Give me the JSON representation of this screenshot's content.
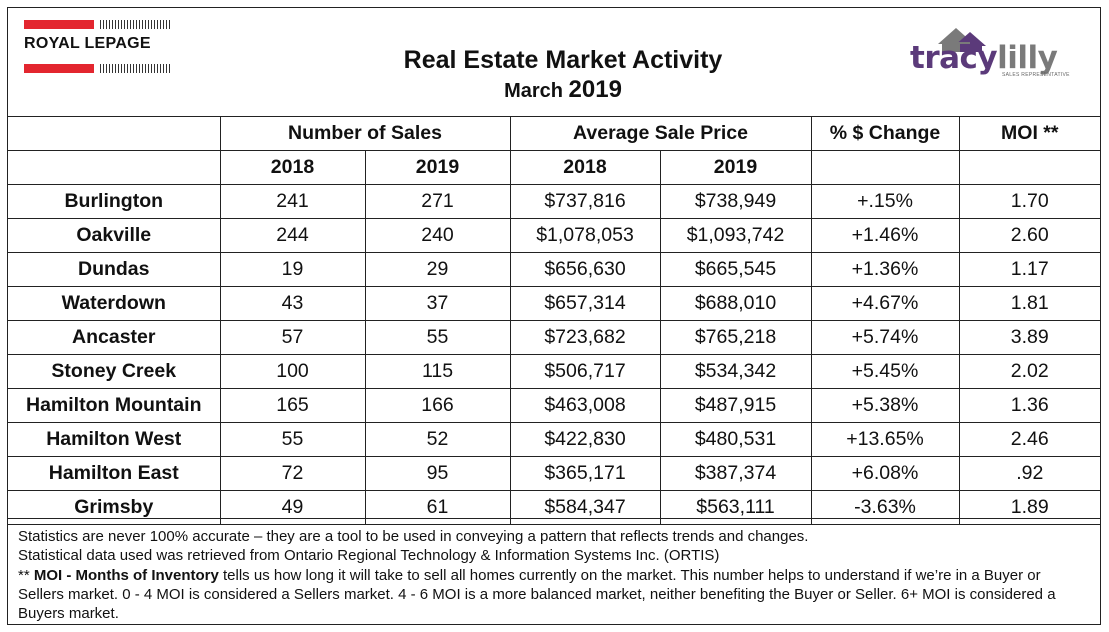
{
  "header": {
    "title": "Real Estate Market Activity",
    "subtitle_month": "March",
    "subtitle_year": "2019",
    "logo_left_text": "ROYAL LEPAGE",
    "logo_right_text_a": "tracy",
    "logo_right_text_b": "lilly",
    "logo_right_tagline": "SALES REPRESENTATIVE"
  },
  "table": {
    "group_headers": {
      "sales": "Number of Sales",
      "price": "Average Sale Price",
      "change": "% $ Change",
      "moi": "MOI **"
    },
    "year_headers": [
      "2018",
      "2019",
      "2018",
      "2019"
    ],
    "rows": [
      {
        "city": "Burlington",
        "sales_2018": "241",
        "sales_2019": "271",
        "price_2018": "$737,816",
        "price_2019": "$738,949",
        "change": "+.15%",
        "moi": "1.70"
      },
      {
        "city": "Oakville",
        "sales_2018": "244",
        "sales_2019": "240",
        "price_2018": "$1,078,053",
        "price_2019": "$1,093,742",
        "change": "+1.46%",
        "moi": "2.60"
      },
      {
        "city": "Dundas",
        "sales_2018": "19",
        "sales_2019": "29",
        "price_2018": "$656,630",
        "price_2019": "$665,545",
        "change": "+1.36%",
        "moi": "1.17"
      },
      {
        "city": "Waterdown",
        "sales_2018": "43",
        "sales_2019": "37",
        "price_2018": "$657,314",
        "price_2019": "$688,010",
        "change": "+4.67%",
        "moi": "1.81"
      },
      {
        "city": "Ancaster",
        "sales_2018": "57",
        "sales_2019": "55",
        "price_2018": "$723,682",
        "price_2019": "$765,218",
        "change": "+5.74%",
        "moi": "3.89"
      },
      {
        "city": "Stoney Creek",
        "sales_2018": "100",
        "sales_2019": "115",
        "price_2018": "$506,717",
        "price_2019": "$534,342",
        "change": "+5.45%",
        "moi": "2.02"
      },
      {
        "city": "Hamilton Mountain",
        "sales_2018": "165",
        "sales_2019": "166",
        "price_2018": "$463,008",
        "price_2019": "$487,915",
        "change": "+5.38%",
        "moi": "1.36"
      },
      {
        "city": "Hamilton West",
        "sales_2018": "55",
        "sales_2019": "52",
        "price_2018": "$422,830",
        "price_2019": "$480,531",
        "change": "+13.65%",
        "moi": "2.46"
      },
      {
        "city": "Hamilton East",
        "sales_2018": "72",
        "sales_2019": "95",
        "price_2018": "$365,171",
        "price_2019": "$387,374",
        "change": "+6.08%",
        "moi": ".92"
      },
      {
        "city": "Grimsby",
        "sales_2018": "49",
        "sales_2019": "61",
        "price_2018": "$584,347",
        "price_2019": "$563,111",
        "change": "-3.63%",
        "moi": "1.89"
      }
    ]
  },
  "notes": {
    "line1": "Statistics are never 100% accurate – they are a tool to be used in conveying a pattern that reflects trends and changes.",
    "line2": "Statistical data used was retrieved from Ontario Regional Technology & Information Systems Inc. (ORTIS)",
    "moi_prefix": "** ",
    "moi_bold": "MOI - Months of Inventory",
    "moi_text": " tells us how long it will take to sell all homes currently on the market. This number helps to understand if we’re in a Buyer or Sellers market. 0 - 4 MOI is considered a Sellers market. 4 - 6 MOI is a more balanced market, neither benefiting the Buyer or Seller. 6+ MOI is considered a Buyers market."
  },
  "colors": {
    "brand_red": "#e3262f",
    "brand_purple": "#5b3a7a",
    "border": "#222222"
  }
}
